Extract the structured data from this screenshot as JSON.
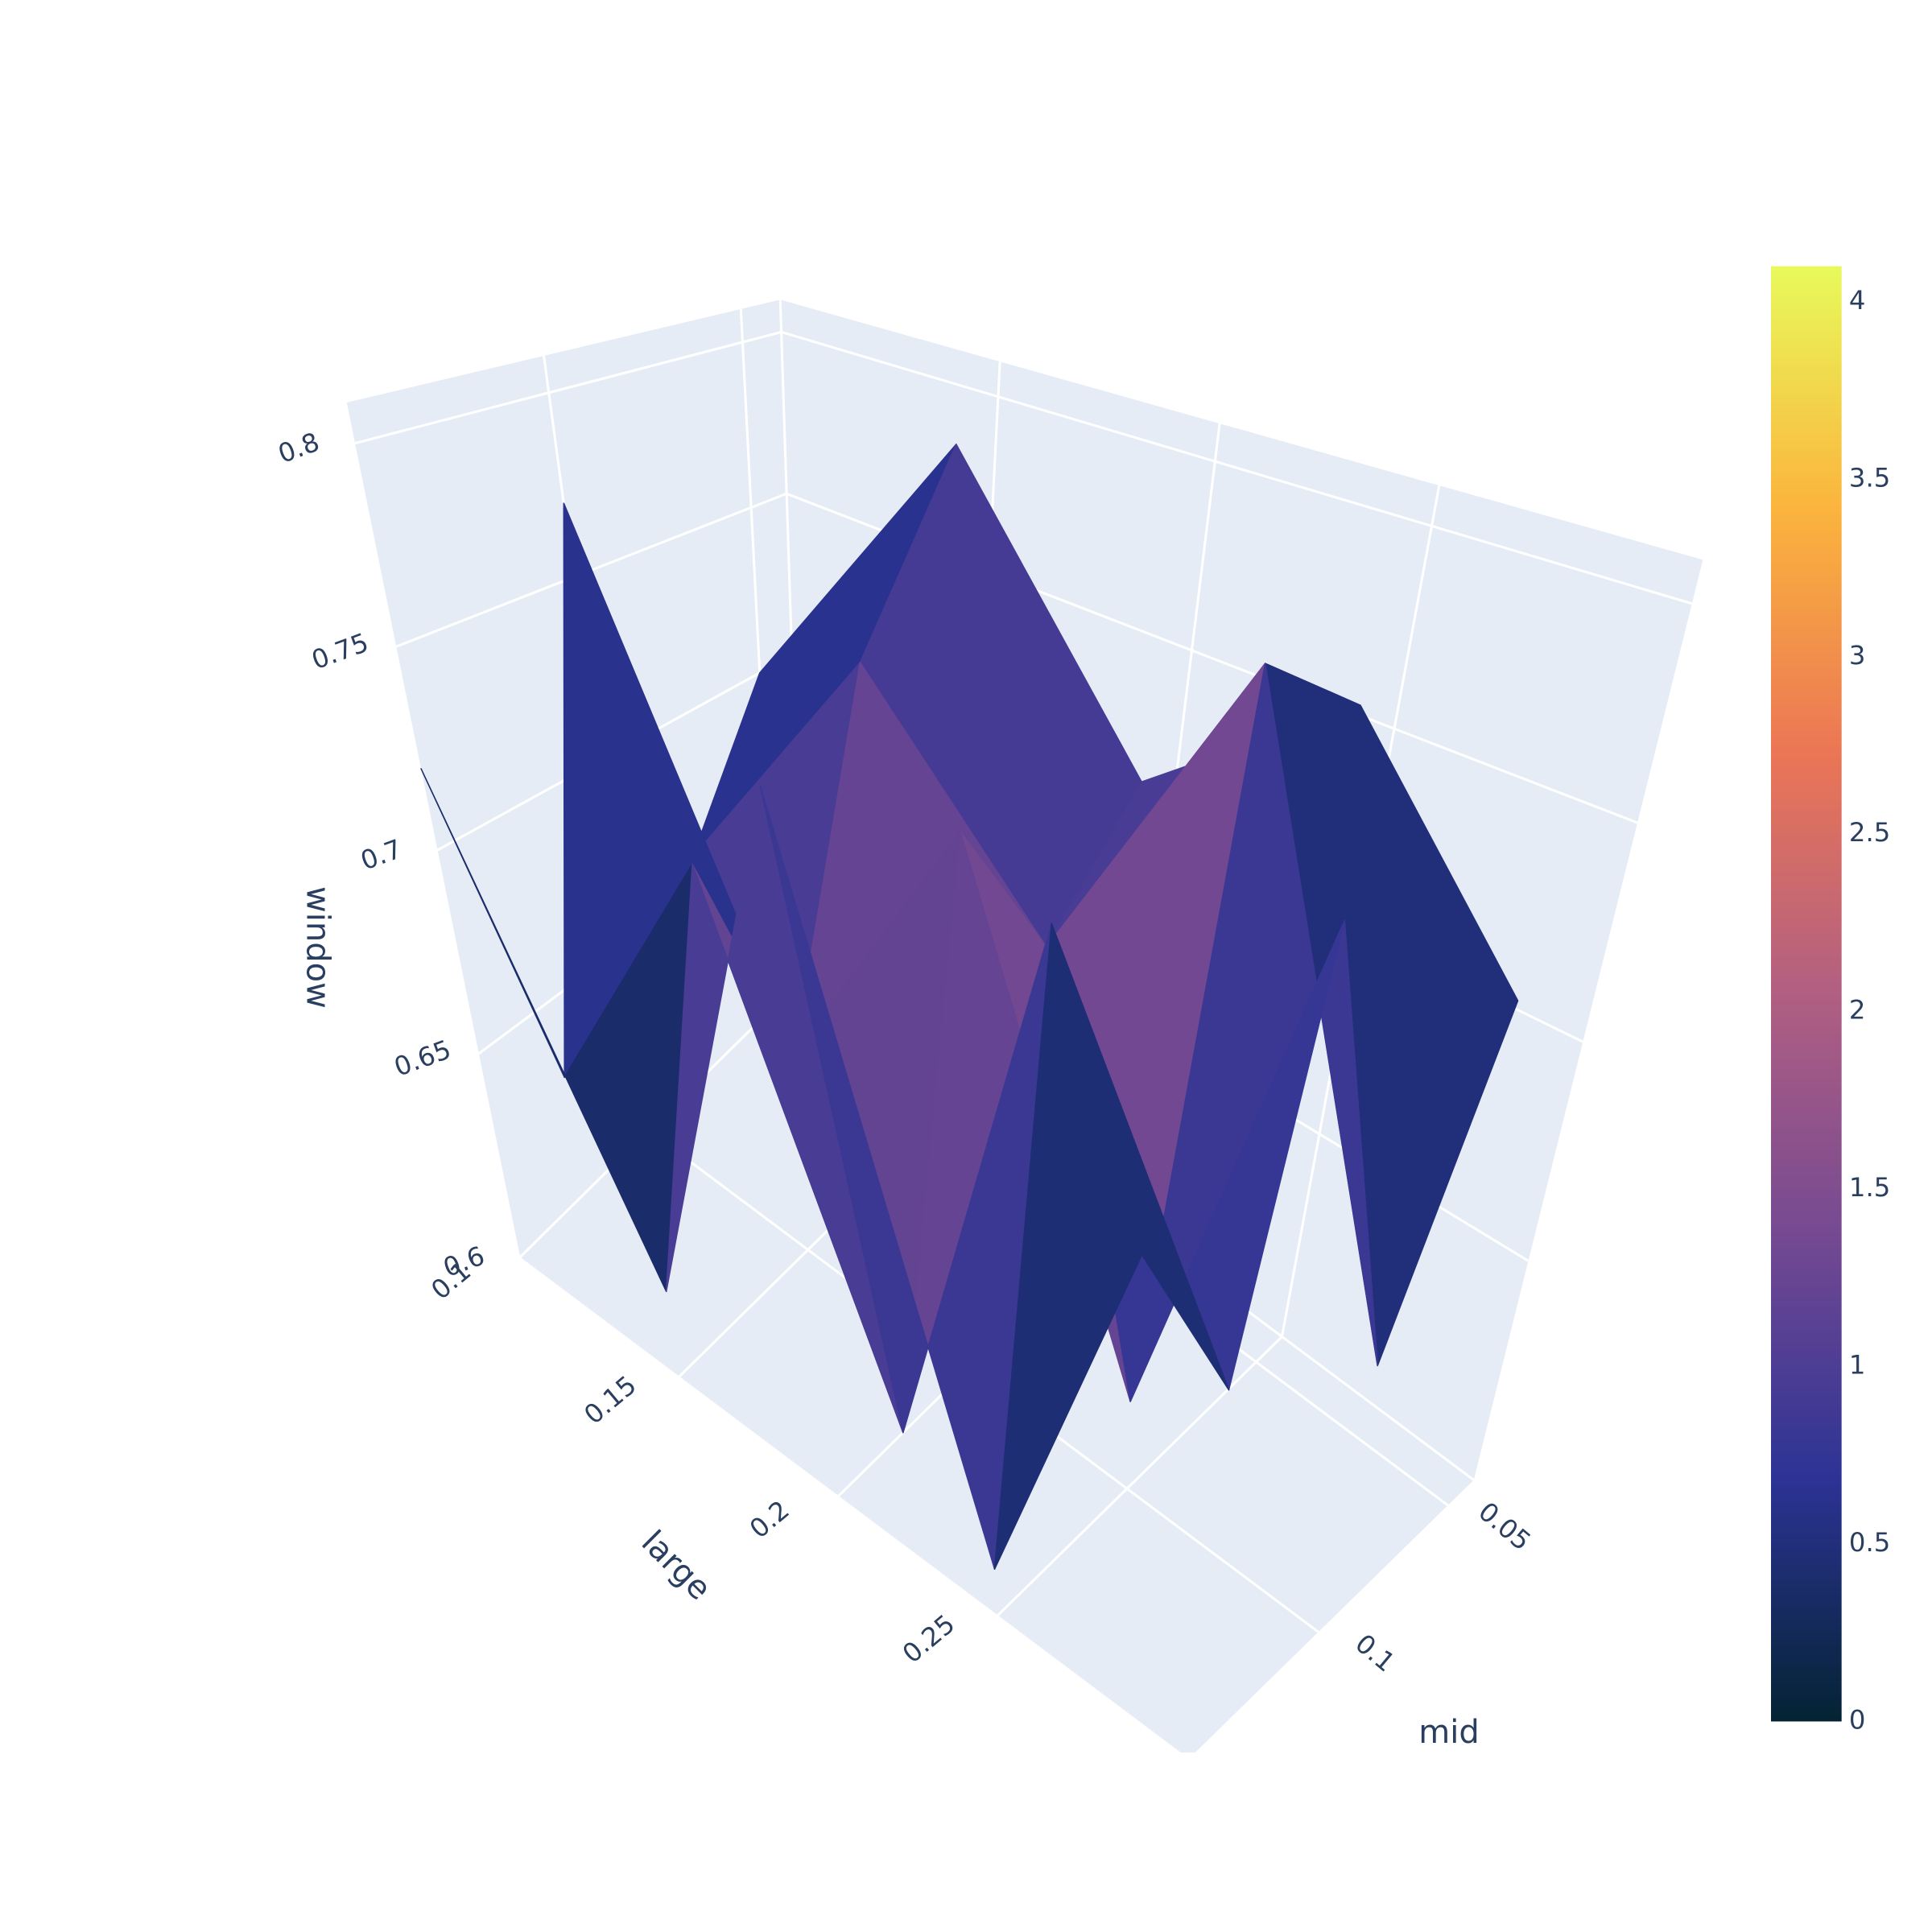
{
  "chart_data": {
    "type": "surface",
    "x_title": "large",
    "y_title": "mid",
    "z_title": "window",
    "x": [
      0.1,
      0.15,
      0.2,
      0.25,
      0.3
    ],
    "y": [
      0.05,
      0.075,
      0.1,
      0.125,
      0.15
    ],
    "z": [
      [
        0.7,
        0.79,
        0.72,
        0.76,
        0.71
      ],
      [
        0.66,
        0.74,
        0.69,
        0.78,
        0.64
      ],
      [
        0.77,
        0.65,
        0.73,
        0.62,
        0.75
      ],
      [
        0.63,
        0.71,
        0.6,
        0.74,
        0.66
      ],
      [
        0.72,
        0.62,
        0.76,
        0.61,
        0.7
      ]
    ],
    "surfacecolor": [
      [
        0.3,
        0.2,
        0.6,
        0.2,
        0.4
      ],
      [
        1.8,
        0.3,
        2.6,
        0.4,
        1.0
      ],
      [
        0.5,
        1.2,
        0.8,
        1.6,
        0.3
      ],
      [
        0.2,
        0.6,
        2.2,
        0.3,
        0.9
      ],
      [
        0.4,
        0.3,
        0.7,
        0.1,
        0.5
      ]
    ],
    "xlim": [
      0.1,
      0.31
    ],
    "xticks": [
      0.1,
      0.15,
      0.2,
      0.25
    ],
    "ylim": [
      0.04,
      0.15
    ],
    "yticks": [
      0.05,
      0.1
    ],
    "zlim": [
      0.6,
      0.81
    ],
    "zticks": [
      0.6,
      0.65,
      0.7,
      0.75,
      0.8
    ],
    "cmin": 0,
    "cmax": 4.1,
    "colorbar_ticks": [
      0,
      0.5,
      1,
      1.5,
      2,
      2.5,
      3,
      3.5,
      4
    ],
    "colorscale": [
      [
        0,
        "#042333"
      ],
      [
        0.1667,
        "#2c3395"
      ],
      [
        0.3333,
        "#744992"
      ],
      [
        0.5,
        "#b15f82"
      ],
      [
        0.6667,
        "#eb7655"
      ],
      [
        0.8333,
        "#fbb43d"
      ],
      [
        1,
        "#e8fa5b"
      ]
    ],
    "grid": true
  }
}
